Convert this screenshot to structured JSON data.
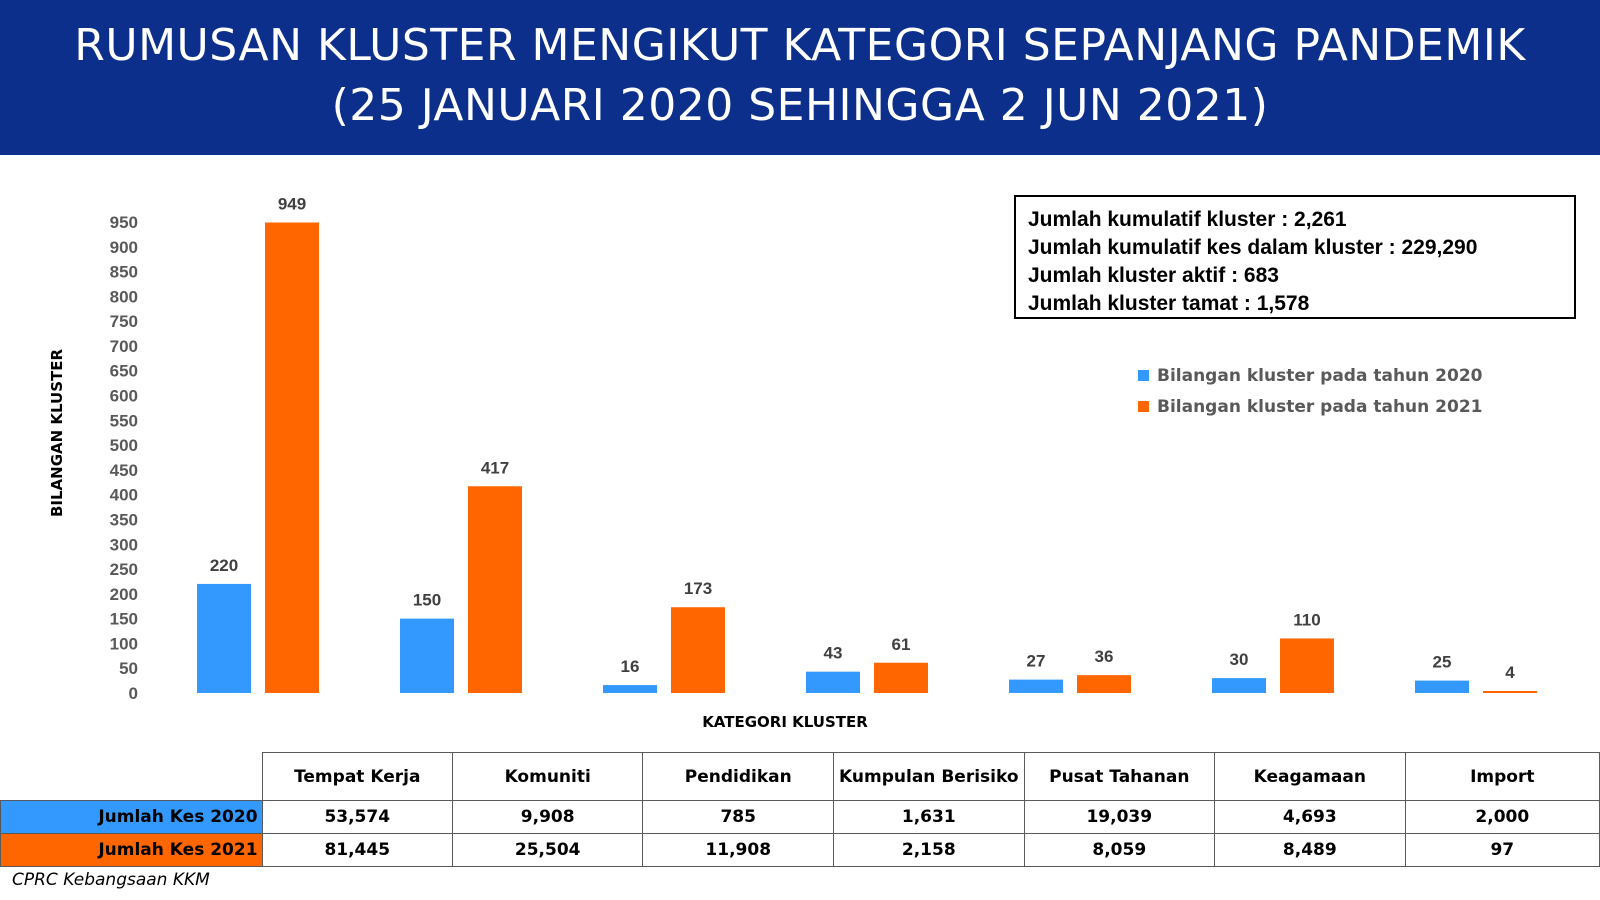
{
  "header": {
    "title_line1": "RUMUSAN KLUSTER MENGIKUT KATEGORI SEPANJANG PANDEMIK",
    "title_line2": "(25 JANUARI 2020 SEHINGGA 2 JUN 2021)"
  },
  "summary": {
    "line1": "Jumlah kumulatif kluster : 2,261",
    "line2": "Jumlah kumulatif kes dalam kluster : 229,290",
    "line3": "Jumlah kluster aktif : 683",
    "line4": "Jumlah kluster tamat : 1,578"
  },
  "colors": {
    "header_bg": "#0b2f8a",
    "series_2020": "#3399ff",
    "series_2021": "#ff6600"
  },
  "chart_data": {
    "type": "bar",
    "ylabel": "BILANGAN KLUSTER",
    "xlabel": "KATEGORI KLUSTER",
    "ylim": [
      0,
      950
    ],
    "yticks": [
      0,
      50,
      100,
      150,
      200,
      250,
      300,
      350,
      400,
      450,
      500,
      550,
      600,
      650,
      700,
      750,
      800,
      850,
      900,
      950
    ],
    "categories": [
      "Tempat Kerja",
      "Komuniti",
      "Pendidikan",
      "Kumpulan Berisiko",
      "Pusat Tahanan",
      "Keagamaan",
      "Import"
    ],
    "series": [
      {
        "name": "Bilangan kluster pada tahun 2020",
        "values": [
          220,
          150,
          16,
          43,
          27,
          30,
          25
        ]
      },
      {
        "name": "Bilangan kluster pada tahun 2021",
        "values": [
          949,
          417,
          173,
          61,
          36,
          110,
          4
        ]
      }
    ],
    "legend_position": "right",
    "grid": false
  },
  "table": {
    "columns": [
      "Tempat Kerja",
      "Komuniti",
      "Pendidikan",
      "Kumpulan Berisiko",
      "Pusat Tahanan",
      "Keagamaan",
      "Import"
    ],
    "rows": [
      {
        "label": "Jumlah Kes 2020",
        "values": [
          "53,574",
          "9,908",
          "785",
          "1,631",
          "19,039",
          "4,693",
          "2,000"
        ]
      },
      {
        "label": "Jumlah Kes 2021",
        "values": [
          "81,445",
          "25,504",
          "11,908",
          "2,158",
          "8,059",
          "8,489",
          "97"
        ]
      }
    ]
  },
  "source": "CPRC Kebangsaan KKM"
}
